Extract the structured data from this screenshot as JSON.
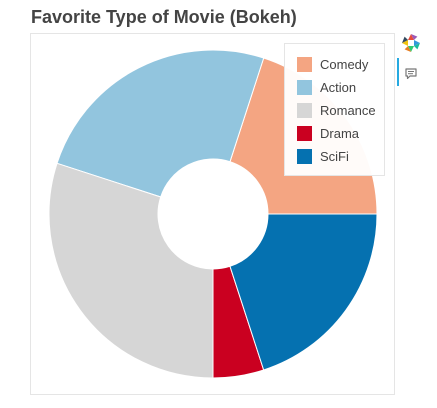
{
  "title": "Favorite Type of Movie (Bokeh)",
  "toolbar": {
    "items": [
      "bokeh-logo-icon",
      "hover-tool-icon"
    ]
  },
  "chart_data": {
    "type": "pie",
    "title": "Favorite Type of Movie (Bokeh)",
    "variant": "donut",
    "legend_position": "top-right",
    "categories": [
      "Comedy",
      "Action",
      "Romance",
      "Drama",
      "SciFi"
    ],
    "values": [
      4,
      5,
      6,
      1,
      4
    ],
    "colors": [
      "#f4a582",
      "#92c5de",
      "#d6d6d6",
      "#ca0020",
      "#0571b0"
    ]
  }
}
